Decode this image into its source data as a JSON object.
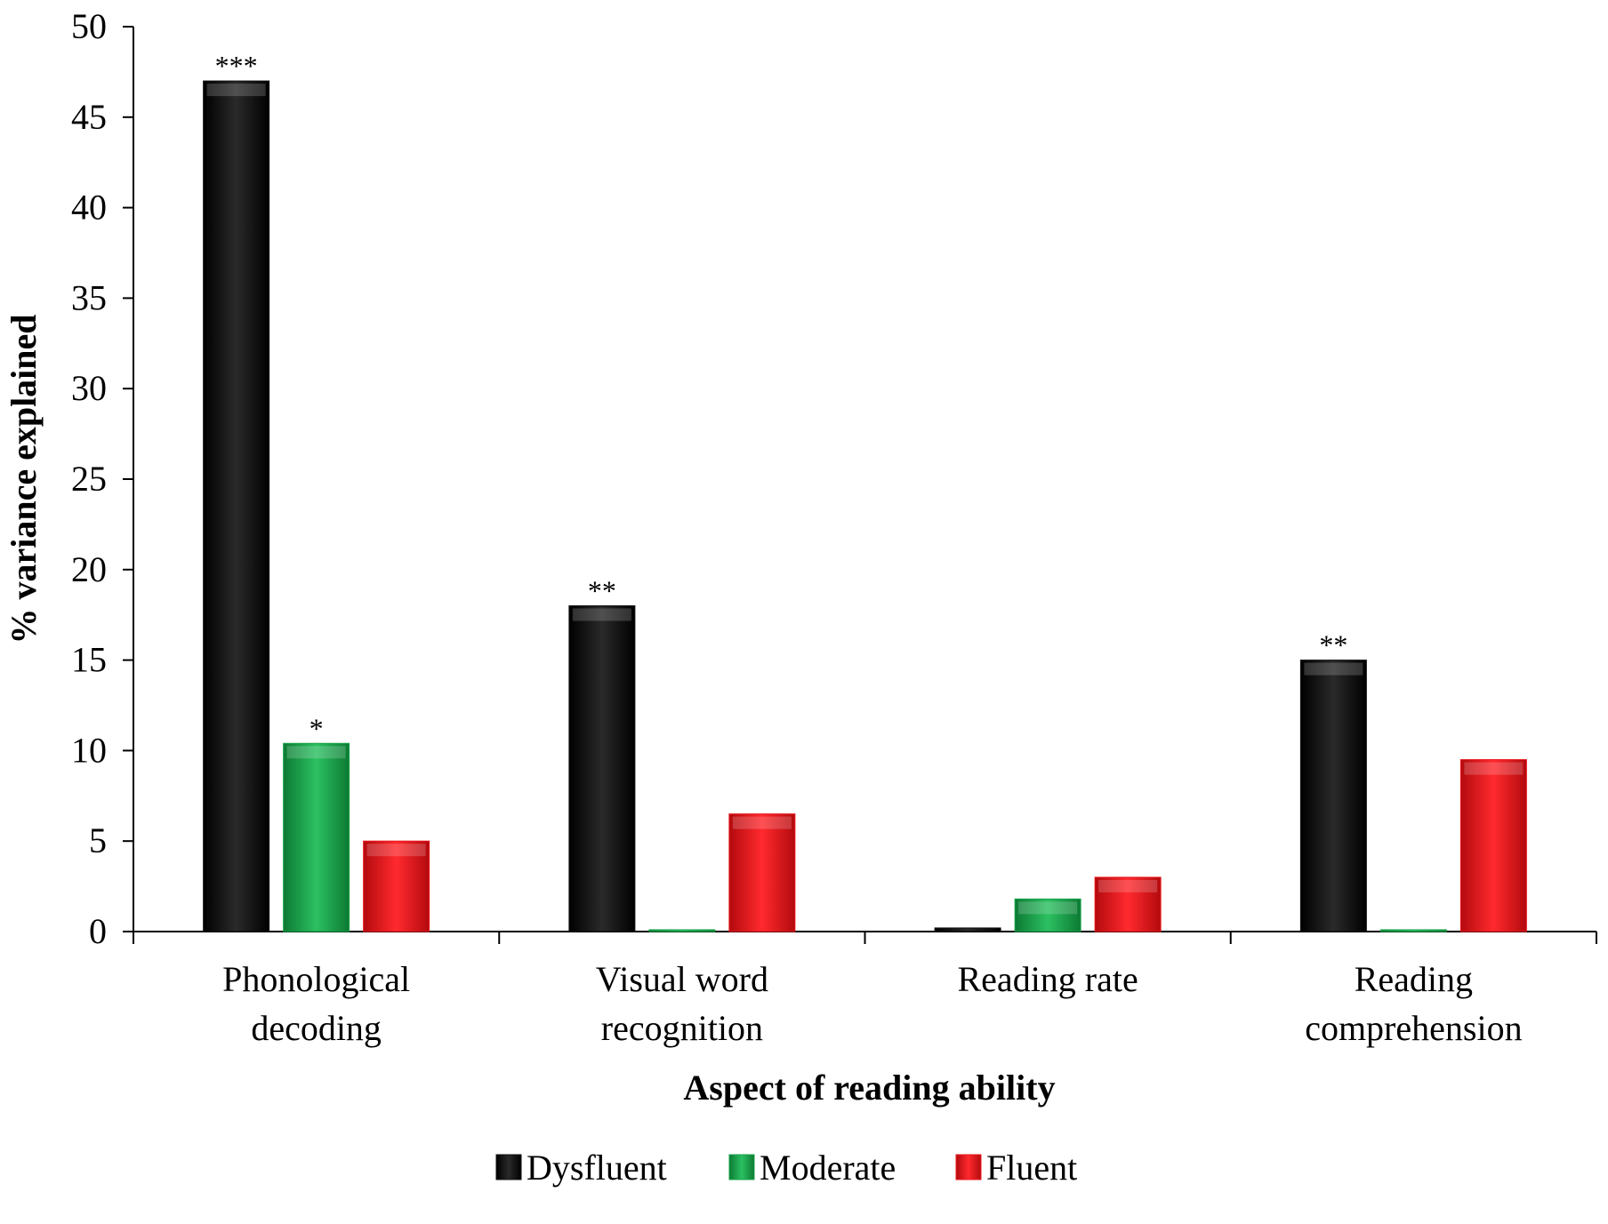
{
  "chart_data": {
    "type": "bar",
    "title": "",
    "xlabel": "Aspect of reading ability",
    "ylabel": "% variance explained",
    "ylim": [
      0,
      50
    ],
    "yticks": [
      0,
      5,
      10,
      15,
      20,
      25,
      30,
      35,
      40,
      45,
      50
    ],
    "grid": false,
    "legend_position": "bottom",
    "categories": [
      [
        "Phonological",
        "decoding"
      ],
      [
        "Visual word",
        "recognition"
      ],
      [
        "Reading rate"
      ],
      [
        "Reading",
        "comprehension"
      ]
    ],
    "series": [
      {
        "name": "Dysfluent",
        "color": "#111111",
        "values": [
          47,
          18,
          0.2,
          15
        ],
        "annotations": [
          "***",
          "**",
          "",
          "**"
        ]
      },
      {
        "name": "Moderate",
        "color": "#1aa34a",
        "values": [
          10.4,
          0.1,
          1.8,
          0.1
        ],
        "annotations": [
          "*",
          "",
          "",
          ""
        ]
      },
      {
        "name": "Fluent",
        "color": "#e8171c",
        "values": [
          5,
          6.5,
          3,
          9.5
        ],
        "annotations": [
          "",
          "",
          "",
          ""
        ]
      }
    ]
  }
}
